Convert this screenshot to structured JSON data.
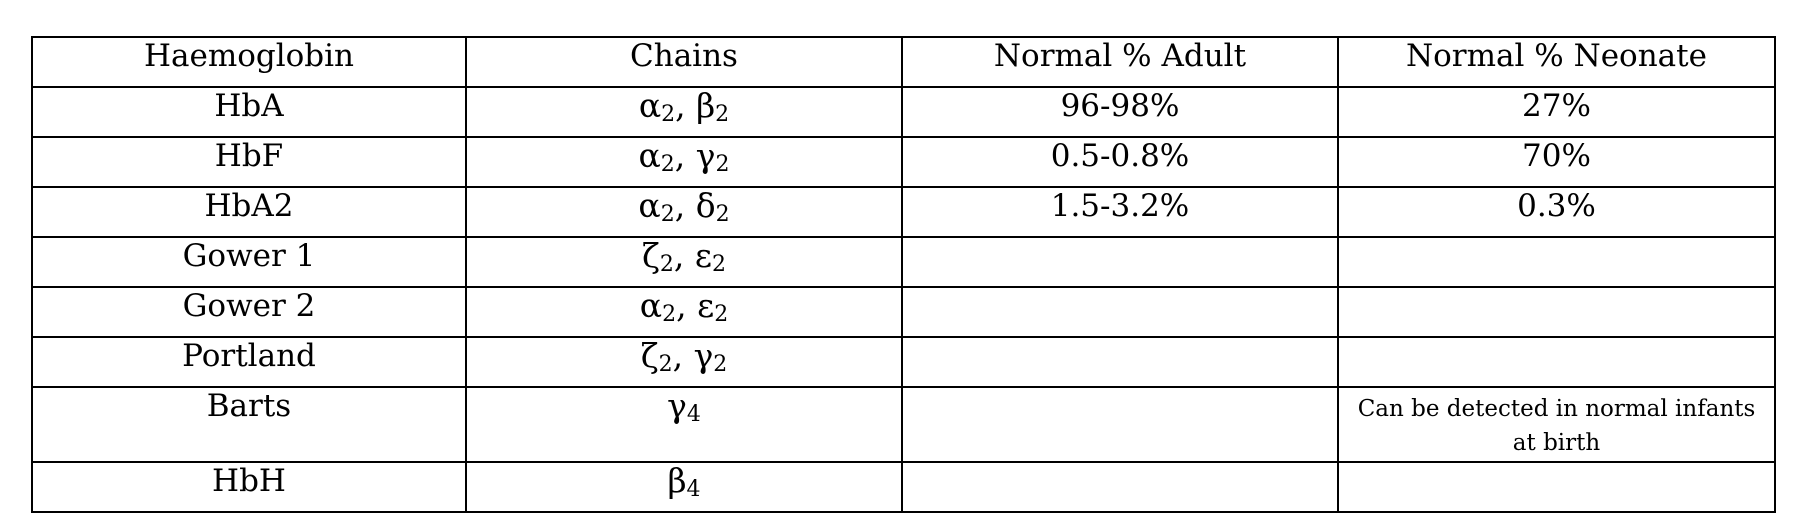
{
  "table": {
    "headers": [
      "Haemoglobin",
      "Chains",
      "Normal % Adult",
      "Normal % Neonate"
    ],
    "rows": [
      {
        "haemoglobin": "HbA",
        "chains": [
          {
            "g": "α",
            "n": "2"
          },
          {
            "g": "β",
            "n": "2"
          }
        ],
        "adult": "96-98%",
        "neonate": "27%"
      },
      {
        "haemoglobin": "HbF",
        "chains": [
          {
            "g": "α",
            "n": "2"
          },
          {
            "g": "γ",
            "n": "2"
          }
        ],
        "adult": "0.5-0.8%",
        "neonate": "70%"
      },
      {
        "haemoglobin": "HbA2",
        "chains": [
          {
            "g": "α",
            "n": "2"
          },
          {
            "g": "δ",
            "n": "2"
          }
        ],
        "adult": "1.5-3.2%",
        "neonate": "0.3%"
      },
      {
        "haemoglobin": "Gower 1",
        "chains": [
          {
            "g": "ζ",
            "n": "2"
          },
          {
            "g": "ε",
            "n": "2"
          }
        ],
        "adult": "",
        "neonate": ""
      },
      {
        "haemoglobin": "Gower 2",
        "chains": [
          {
            "g": "α",
            "n": "2"
          },
          {
            "g": "ε",
            "n": "2"
          }
        ],
        "adult": "",
        "neonate": ""
      },
      {
        "haemoglobin": "Portland",
        "chains": [
          {
            "g": "ζ",
            "n": "2"
          },
          {
            "g": "γ",
            "n": "2"
          }
        ],
        "adult": "",
        "neonate": ""
      },
      {
        "haemoglobin": "Barts",
        "chains": [
          {
            "g": "γ",
            "n": "4"
          }
        ],
        "adult": "",
        "neonate": "Can be detected in normal infants at birth"
      },
      {
        "haemoglobin": "HbH",
        "chains": [
          {
            "g": "β",
            "n": "4"
          }
        ],
        "adult": "",
        "neonate": ""
      }
    ]
  }
}
